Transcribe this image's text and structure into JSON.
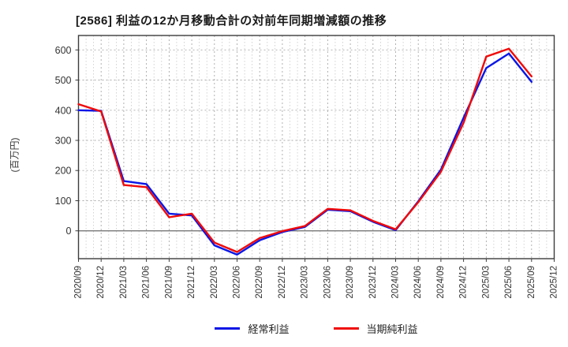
{
  "title": "[2586]  利益の12か月移動合計の対前年同期増減額の推移",
  "y_axis_label": "(百万円)",
  "legend": [
    {
      "label": "経常利益",
      "color": "#0a16e6"
    },
    {
      "label": "当期純利益",
      "color": "#f00a0a"
    }
  ],
  "chart_data": {
    "type": "line",
    "title": "[2586]  利益の12か月移動合計の対前年同期増減額の推移",
    "xlabel": "",
    "ylabel": "(百万円)",
    "categories": [
      "2020/09",
      "2020/12",
      "2021/03",
      "2021/06",
      "2021/09",
      "2021/12",
      "2022/03",
      "2022/06",
      "2022/09",
      "2022/12",
      "2023/03",
      "2023/06",
      "2023/09",
      "2023/12",
      "2024/03",
      "2024/06",
      "2024/09",
      "2024/12",
      "2025/03",
      "2025/06",
      "2025/09",
      "2025/12"
    ],
    "series": [
      {
        "name": "経常利益",
        "color": "#0a16e6",
        "values": [
          400,
          398,
          165,
          155,
          57,
          51,
          -48,
          -79,
          -31,
          -4,
          13,
          70,
          65,
          30,
          2,
          98,
          203,
          375,
          540,
          588,
          494
        ]
      },
      {
        "name": "当期純利益",
        "color": "#f00a0a",
        "values": [
          420,
          396,
          152,
          145,
          45,
          57,
          -39,
          -70,
          -24,
          -1,
          16,
          73,
          68,
          33,
          5,
          95,
          196,
          358,
          578,
          604,
          512
        ]
      }
    ],
    "note_last_category_has_no_data": "2025/12",
    "yticks": [
      0,
      100,
      200,
      300,
      400,
      500,
      600
    ],
    "ylim": [
      -92,
      648
    ],
    "grid": true,
    "grid_minor_x": "monthly",
    "legend_position": "bottom"
  }
}
